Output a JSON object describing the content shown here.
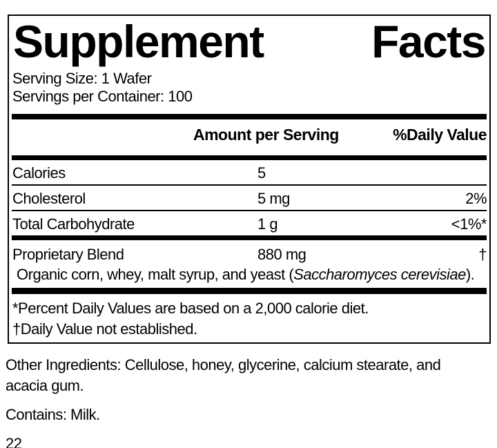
{
  "panel": {
    "title": {
      "word_left": "Supplement",
      "word_right": "Facts"
    },
    "serving_size": "Serving Size: 1 Wafer",
    "servings_per_container": "Servings per Container: 100",
    "column_headers": {
      "amount": "Amount per Serving",
      "daily_value": "%Daily Value"
    },
    "rows": [
      {
        "name": "Calories",
        "amount": "5",
        "dv": ""
      },
      {
        "name": "Cholesterol",
        "amount": "5 mg",
        "dv": "2%"
      },
      {
        "name": "Total Carbohydrate",
        "amount": "1 g",
        "dv": "<1%*"
      }
    ],
    "blend": {
      "name": "Proprietary Blend",
      "amount": "880 mg",
      "dv": "†",
      "description_prefix": "Organic corn, whey, malt syrup, and yeast (",
      "description_italic": "Saccharomyces cerevisiae",
      "description_suffix": ")."
    },
    "footnotes": [
      "*Percent Daily Values are based on a 2,000 calorie diet.",
      "†Daily Value not established."
    ]
  },
  "other_ingredients": {
    "line1": "Other Ingredients: Cellulose, honey, glycerine, calcium stearate, and",
    "line2": "acacia gum."
  },
  "contains": "Contains: Milk.",
  "page_number": "22",
  "colors": {
    "ink": "#000000",
    "background": "#ffffff"
  }
}
